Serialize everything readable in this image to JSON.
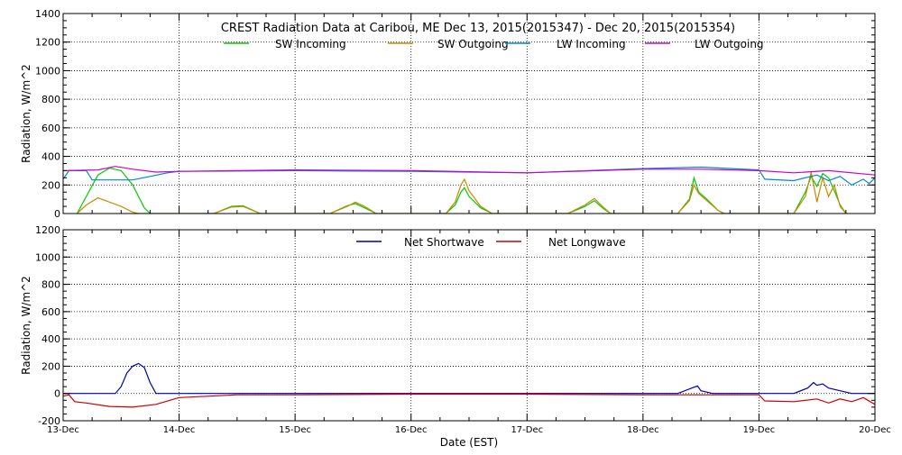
{
  "title": "CREST Radiation Data at Caribou, ME   Dec 13, 2015(2015347) - Dec 20, 2015(2015354)",
  "chart_data": [
    {
      "type": "line",
      "ylabel": "Radiation, W/m^2",
      "ylim": [
        0,
        1400
      ],
      "yticks": [
        0,
        200,
        400,
        600,
        800,
        1000,
        1200,
        1400
      ],
      "xlim": [
        "13-Dec",
        "20-Dec"
      ],
      "grid": true,
      "legend": "top-center",
      "series": [
        {
          "name": "SW Incoming",
          "color": "#00cc00",
          "points": [
            [
              0.12,
              0
            ],
            [
              0.2,
              120
            ],
            [
              0.3,
              270
            ],
            [
              0.4,
              318
            ],
            [
              0.5,
              300
            ],
            [
              0.6,
              200
            ],
            [
              0.7,
              40
            ],
            [
              0.75,
              0
            ],
            [
              1.3,
              0
            ],
            [
              1.45,
              50
            ],
            [
              1.55,
              55
            ],
            [
              1.7,
              0
            ],
            [
              2.3,
              0
            ],
            [
              2.45,
              55
            ],
            [
              2.52,
              70
            ],
            [
              2.6,
              40
            ],
            [
              2.7,
              0
            ],
            [
              3.3,
              0
            ],
            [
              3.38,
              60
            ],
            [
              3.43,
              150
            ],
            [
              3.46,
              180
            ],
            [
              3.5,
              120
            ],
            [
              3.6,
              40
            ],
            [
              3.7,
              0
            ],
            [
              4.35,
              0
            ],
            [
              4.5,
              50
            ],
            [
              4.58,
              90
            ],
            [
              4.65,
              40
            ],
            [
              4.72,
              0
            ],
            [
              5.3,
              0
            ],
            [
              5.4,
              100
            ],
            [
              5.44,
              250
            ],
            [
              5.48,
              150
            ],
            [
              5.55,
              100
            ],
            [
              5.65,
              20
            ],
            [
              5.7,
              0
            ],
            [
              6.3,
              0
            ],
            [
              6.4,
              150
            ],
            [
              6.45,
              260
            ],
            [
              6.5,
              190
            ],
            [
              6.55,
              280
            ],
            [
              6.6,
              250
            ],
            [
              6.65,
              160
            ],
            [
              6.7,
              60
            ],
            [
              6.75,
              0
            ]
          ]
        },
        {
          "name": "SW Outgoing",
          "color": "#cc8800",
          "points": [
            [
              0.12,
              0
            ],
            [
              0.2,
              60
            ],
            [
              0.3,
              110
            ],
            [
              0.4,
              80
            ],
            [
              0.5,
              50
            ],
            [
              0.6,
              10
            ],
            [
              0.65,
              0
            ],
            [
              1.3,
              0
            ],
            [
              1.45,
              45
            ],
            [
              1.55,
              50
            ],
            [
              1.7,
              0
            ],
            [
              2.3,
              0
            ],
            [
              2.45,
              50
            ],
            [
              2.52,
              80
            ],
            [
              2.6,
              50
            ],
            [
              2.7,
              0
            ],
            [
              3.3,
              0
            ],
            [
              3.38,
              80
            ],
            [
              3.43,
              200
            ],
            [
              3.46,
              240
            ],
            [
              3.5,
              160
            ],
            [
              3.6,
              50
            ],
            [
              3.7,
              0
            ],
            [
              4.35,
              0
            ],
            [
              4.5,
              60
            ],
            [
              4.58,
              105
            ],
            [
              4.65,
              50
            ],
            [
              4.72,
              0
            ],
            [
              5.3,
              0
            ],
            [
              5.4,
              90
            ],
            [
              5.44,
              200
            ],
            [
              5.48,
              140
            ],
            [
              5.55,
              90
            ],
            [
              5.65,
              20
            ],
            [
              5.7,
              0
            ],
            [
              6.3,
              0
            ],
            [
              6.4,
              120
            ],
            [
              6.45,
              290
            ],
            [
              6.5,
              80
            ],
            [
              6.55,
              250
            ],
            [
              6.6,
              120
            ],
            [
              6.65,
              200
            ],
            [
              6.7,
              50
            ],
            [
              6.75,
              0
            ]
          ]
        },
        {
          "name": "LW Incoming",
          "color": "#0088cc",
          "points": [
            [
              0,
              240
            ],
            [
              0.05,
              300
            ],
            [
              0.2,
              300
            ],
            [
              0.25,
              235
            ],
            [
              0.6,
              235
            ],
            [
              0.75,
              260
            ],
            [
              0.9,
              285
            ],
            [
              1,
              295
            ],
            [
              2,
              300
            ],
            [
              3,
              295
            ],
            [
              4,
              285
            ],
            [
              5,
              315
            ],
            [
              5.5,
              325
            ],
            [
              6,
              305
            ],
            [
              6.05,
              240
            ],
            [
              6.3,
              230
            ],
            [
              6.5,
              270
            ],
            [
              6.6,
              230
            ],
            [
              6.7,
              260
            ],
            [
              6.8,
              200
            ],
            [
              6.9,
              240
            ],
            [
              6.95,
              210
            ],
            [
              7,
              250
            ]
          ]
        },
        {
          "name": "LW Outgoing",
          "color": "#cc00cc",
          "points": [
            [
              0,
              300
            ],
            [
              0.3,
              305
            ],
            [
              0.45,
              330
            ],
            [
              0.6,
              310
            ],
            [
              0.8,
              290
            ],
            [
              1,
              295
            ],
            [
              2,
              305
            ],
            [
              3,
              300
            ],
            [
              4,
              285
            ],
            [
              5,
              310
            ],
            [
              5.5,
              310
            ],
            [
              6,
              300
            ],
            [
              6.3,
              285
            ],
            [
              6.6,
              300
            ],
            [
              7,
              270
            ]
          ]
        }
      ]
    },
    {
      "type": "line",
      "xlabel": "Date (EST)",
      "ylabel": "Radiation, W/m^2",
      "ylim": [
        -200,
        1200
      ],
      "yticks": [
        -200,
        0,
        200,
        400,
        600,
        800,
        1000,
        1200
      ],
      "xticks": [
        "13-Dec",
        "14-Dec",
        "15-Dec",
        "16-Dec",
        "17-Dec",
        "18-Dec",
        "19-Dec",
        "20-Dec"
      ],
      "grid": true,
      "legend": "top-center",
      "series": [
        {
          "name": "Net Shortwave",
          "color": "#0000aa",
          "points": [
            [
              0,
              0
            ],
            [
              0.45,
              0
            ],
            [
              0.5,
              50
            ],
            [
              0.55,
              150
            ],
            [
              0.6,
              200
            ],
            [
              0.65,
              220
            ],
            [
              0.7,
              190
            ],
            [
              0.75,
              80
            ],
            [
              0.8,
              0
            ],
            [
              5.3,
              0
            ],
            [
              5.42,
              40
            ],
            [
              5.47,
              55
            ],
            [
              5.5,
              20
            ],
            [
              5.6,
              0
            ],
            [
              6.3,
              0
            ],
            [
              6.42,
              40
            ],
            [
              6.47,
              80
            ],
            [
              6.5,
              60
            ],
            [
              6.55,
              70
            ],
            [
              6.6,
              40
            ],
            [
              6.7,
              20
            ],
            [
              6.8,
              0
            ],
            [
              7,
              0
            ]
          ]
        },
        {
          "name": "Net Longwave",
          "color": "#cc0000",
          "points": [
            [
              0,
              -20
            ],
            [
              0.05,
              -10
            ],
            [
              0.1,
              -60
            ],
            [
              0.2,
              -70
            ],
            [
              0.4,
              -95
            ],
            [
              0.6,
              -100
            ],
            [
              0.8,
              -80
            ],
            [
              1,
              -30
            ],
            [
              1.5,
              -10
            ],
            [
              2,
              -10
            ],
            [
              3,
              -5
            ],
            [
              4,
              -5
            ],
            [
              5,
              -10
            ],
            [
              6,
              -10
            ],
            [
              6.05,
              -55
            ],
            [
              6.3,
              -60
            ],
            [
              6.5,
              -40
            ],
            [
              6.6,
              -70
            ],
            [
              6.7,
              -40
            ],
            [
              6.8,
              -60
            ],
            [
              6.9,
              -30
            ],
            [
              7,
              -80
            ]
          ]
        }
      ]
    }
  ]
}
